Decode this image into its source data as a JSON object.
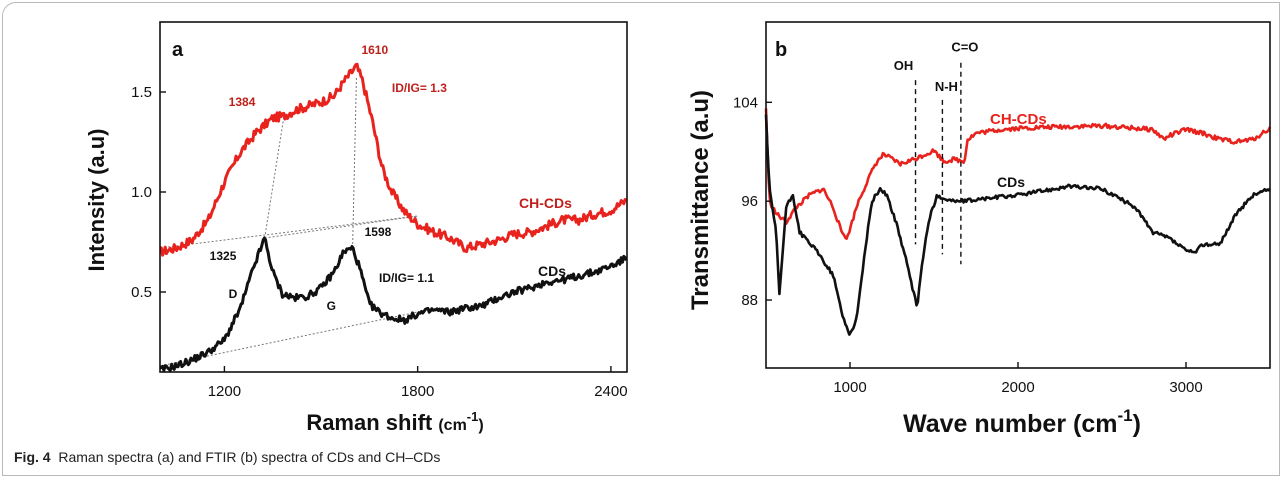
{
  "caption": {
    "label": "Fig. 4",
    "text": "Raman spectra (a) and FTIR (b) spectra of CDs and CH–CDs"
  },
  "chart_data": [
    {
      "type": "line",
      "panel": "a",
      "xlabel": "Raman shift",
      "xunit": "(cm-1)",
      "ylabel": "Intensity (a.u)",
      "xlim": [
        1000,
        2450
      ],
      "ylim": [
        0.1,
        1.85
      ],
      "xticks": [
        1200,
        1800,
        2400
      ],
      "yticks": [
        0.5,
        1.0,
        1.5
      ],
      "colors": {
        "CH-CDs": "#e8231d",
        "CDs": "#111111"
      },
      "series": [
        {
          "name": "CH-CDs",
          "x": [
            1000,
            1050,
            1100,
            1150,
            1200,
            1250,
            1300,
            1350,
            1384,
            1420,
            1460,
            1500,
            1540,
            1570,
            1590,
            1610,
            1630,
            1660,
            1690,
            1720,
            1760,
            1800,
            1850,
            1900,
            1950,
            2000,
            2050,
            2100,
            2150,
            2200,
            2250,
            2300,
            2350,
            2400,
            2450
          ],
          "y": [
            0.7,
            0.72,
            0.76,
            0.86,
            1.05,
            1.2,
            1.3,
            1.37,
            1.38,
            1.41,
            1.43,
            1.45,
            1.48,
            1.55,
            1.59,
            1.63,
            1.55,
            1.35,
            1.12,
            1.0,
            0.9,
            0.84,
            0.8,
            0.77,
            0.72,
            0.74,
            0.76,
            0.79,
            0.8,
            0.83,
            0.86,
            0.86,
            0.89,
            0.91,
            0.96
          ]
        },
        {
          "name": "CDs",
          "x": [
            1000,
            1050,
            1100,
            1150,
            1200,
            1250,
            1290,
            1325,
            1350,
            1380,
            1420,
            1460,
            1500,
            1540,
            1570,
            1598,
            1620,
            1650,
            1680,
            1720,
            1760,
            1800,
            1850,
            1900,
            1950,
            2000,
            2050,
            2100,
            2150,
            2200,
            2250,
            2300,
            2350,
            2400,
            2450
          ],
          "y": [
            0.11,
            0.13,
            0.16,
            0.2,
            0.26,
            0.42,
            0.62,
            0.77,
            0.6,
            0.49,
            0.47,
            0.48,
            0.52,
            0.6,
            0.7,
            0.72,
            0.62,
            0.44,
            0.4,
            0.37,
            0.36,
            0.39,
            0.41,
            0.4,
            0.42,
            0.43,
            0.47,
            0.5,
            0.52,
            0.55,
            0.56,
            0.58,
            0.6,
            0.63,
            0.67
          ]
        }
      ],
      "peak_labels": [
        {
          "text": "1610",
          "x": 1610,
          "y": 1.63,
          "color": "#c0201c"
        },
        {
          "text": "1384",
          "x": 1384,
          "y": 1.38,
          "color": "#c0201c"
        },
        {
          "text": "ID/IG= 1.3",
          "x": 1700,
          "y": 1.52,
          "color": "#c0201c"
        },
        {
          "text": "1325",
          "x": 1325,
          "y": 0.77,
          "color": "#111111"
        },
        {
          "text": "1598",
          "x": 1598,
          "y": 0.72,
          "color": "#111111"
        },
        {
          "text": "D",
          "x": 1325,
          "y": 0.77,
          "color": "#111111"
        },
        {
          "text": "G",
          "x": 1598,
          "y": 0.72,
          "color": "#111111"
        },
        {
          "text": "ID/IG= 1.1",
          "x": 1700,
          "y": 0.55,
          "color": "#111111"
        }
      ],
      "series_labels": [
        {
          "text": "CH-CDs",
          "color": "#c0201c"
        },
        {
          "text": "CDs",
          "color": "#111111"
        }
      ],
      "panel_label": "a"
    },
    {
      "type": "line",
      "panel": "b",
      "xlabel": "Wave number",
      "xunit": "(cm-1)",
      "ylabel": "Transmittance (a.u)",
      "xlim": [
        500,
        3500
      ],
      "ylim": [
        82.5,
        110.5
      ],
      "xticks": [
        1000,
        2000,
        3000
      ],
      "yticks": [
        88,
        96,
        104
      ],
      "colors": {
        "CH-CDs": "#e8231d",
        "CDs": "#111111"
      },
      "series": [
        {
          "name": "CH-CDs",
          "x": [
            500,
            520,
            560,
            620,
            680,
            760,
            840,
            900,
            950,
            985,
            1000,
            1050,
            1100,
            1150,
            1200,
            1300,
            1400,
            1500,
            1560,
            1620,
            1680,
            1700,
            1750,
            1800,
            1900,
            2000,
            2200,
            2500,
            2800,
            2870,
            2900,
            3000,
            3100,
            3200,
            3300,
            3400,
            3500
          ],
          "y": [
            103.5,
            96.0,
            95.0,
            94.3,
            95.5,
            96.5,
            97.0,
            95.5,
            93.5,
            93.0,
            93.8,
            96.0,
            97.5,
            99.0,
            99.8,
            99.0,
            99.5,
            100.1,
            99.2,
            99.4,
            99.2,
            101.0,
            101.5,
            101.6,
            101.8,
            101.9,
            102.0,
            102.1,
            101.8,
            101.0,
            101.3,
            101.8,
            101.5,
            101.0,
            100.8,
            101.0,
            101.9
          ]
        },
        {
          "name": "CDs",
          "x": [
            500,
            520,
            560,
            580,
            600,
            620,
            660,
            700,
            800,
            900,
            960,
            1000,
            1040,
            1080,
            1130,
            1180,
            1220,
            1280,
            1330,
            1370,
            1400,
            1430,
            1470,
            1520,
            1560,
            1620,
            1680,
            1800,
            2000,
            2300,
            2500,
            2700,
            2800,
            2900,
            3000,
            3050,
            3100,
            3200,
            3300,
            3400,
            3500
          ],
          "y": [
            103.0,
            97.0,
            93.5,
            88.5,
            92.0,
            95.5,
            96.5,
            93.5,
            92.0,
            90.0,
            86.5,
            85.2,
            86.5,
            91.0,
            96.0,
            97.0,
            96.5,
            94.0,
            91.5,
            89.0,
            87.5,
            91.0,
            94.5,
            96.5,
            96.2,
            96.0,
            96.0,
            96.2,
            96.5,
            97.2,
            97.0,
            95.5,
            93.5,
            93.0,
            92.0,
            91.8,
            92.5,
            92.5,
            95.0,
            96.5,
            97.0
          ]
        }
      ],
      "band_markers": [
        {
          "text": "OH",
          "x": 1390
        },
        {
          "text": "N-H",
          "x": 1550
        },
        {
          "text": "C=O",
          "x": 1660
        }
      ],
      "series_labels": [
        {
          "text": "CH-CDs",
          "color": "#e8231d"
        },
        {
          "text": "CDs",
          "color": "#111111"
        }
      ],
      "panel_label": "b"
    }
  ]
}
